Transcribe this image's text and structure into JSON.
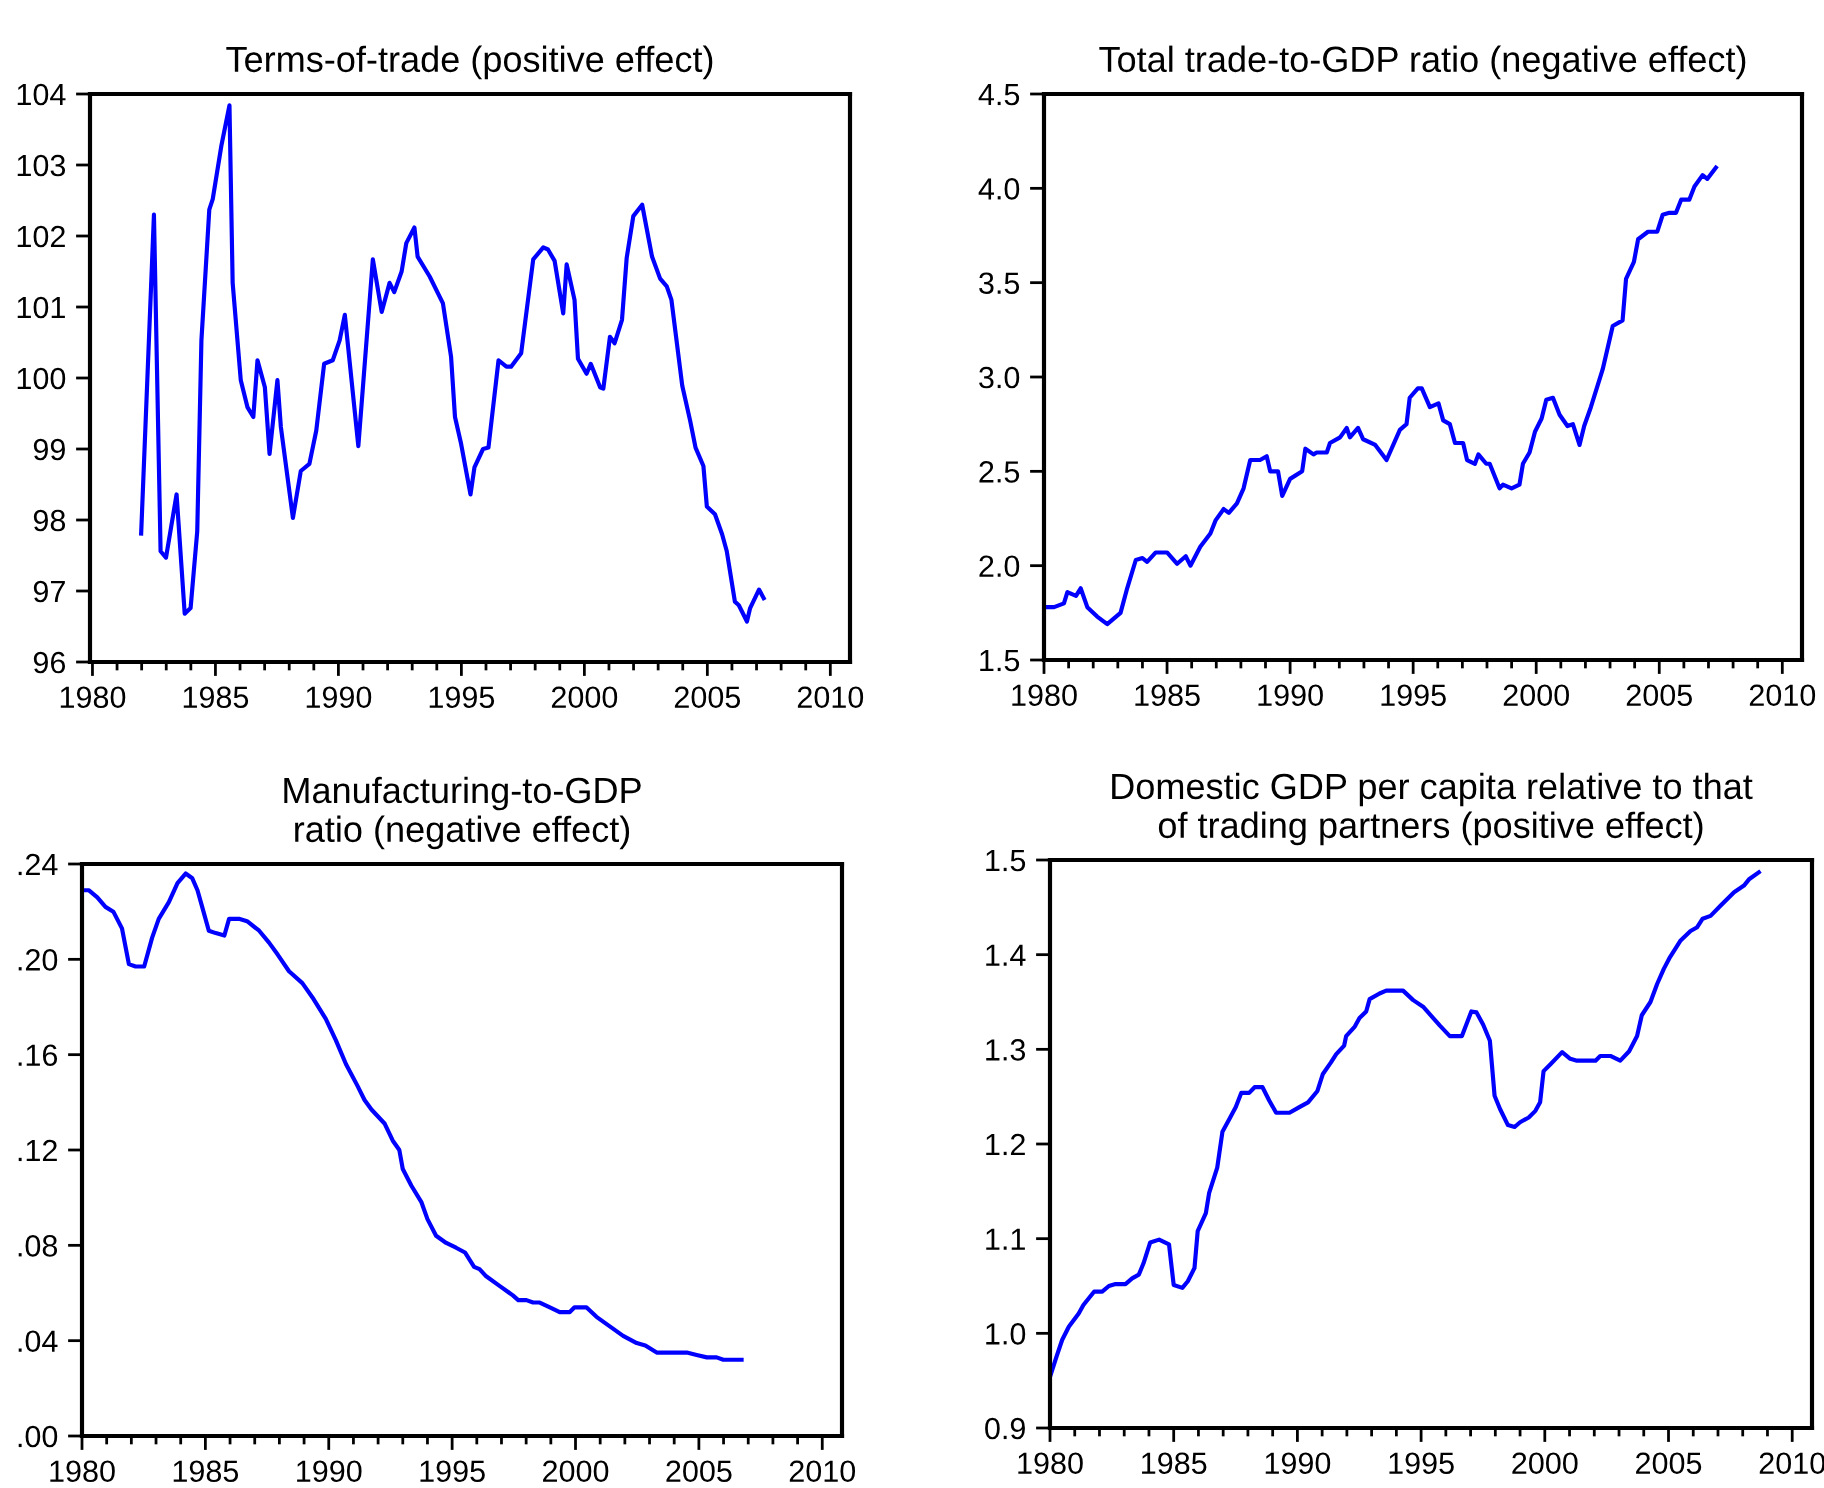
{
  "chart_data": [
    {
      "type": "line",
      "title": "Terms-of-trade (positive effect)",
      "color": "#0000ff",
      "x": [
        1981.98,
        1982.5,
        1982.77,
        1982.99,
        1983.42,
        1983.75,
        1983.99,
        1984.26,
        1984.43,
        1984.75,
        1984.89,
        1985.24,
        1985.57,
        1985.7,
        1986.03,
        1986.3,
        1986.54,
        1986.71,
        1987.01,
        1987.2,
        1987.52,
        1987.66,
        1988.15,
        1988.47,
        1988.82,
        1989.1,
        1989.42,
        1989.77,
        1990.05,
        1990.26,
        1990.81,
        1991.4,
        1991.76,
        1992.08,
        1992.27,
        1992.57,
        1992.76,
        1993.09,
        1993.22,
        1993.71,
        1994.25,
        1994.58,
        1994.74,
        1994.99,
        1995.37,
        1995.53,
        1995.88,
        1996.1,
        1996.51,
        1996.83,
        1997.02,
        1997.43,
        1997.92,
        1998.33,
        1998.52,
        1998.79,
        1999.14,
        1999.28,
        1999.6,
        1999.74,
        2000.09,
        2000.26,
        2000.64,
        2000.77,
        2001.04,
        2001.23,
        2001.53,
        2001.72,
        2001.99,
        2002.35,
        2002.75,
        2003.08,
        2003.35,
        2003.54,
        2003.98,
        2004.3,
        2004.52,
        2004.84,
        2004.98,
        2005.31,
        2005.6,
        2005.79,
        2006.12,
        2006.28,
        2006.61,
        2006.74,
        2007.1,
        2007.29
      ],
      "values": [
        97.81,
        102.3,
        97.56,
        97.47,
        98.36,
        96.68,
        96.76,
        97.84,
        100.53,
        102.37,
        102.52,
        103.27,
        103.84,
        101.34,
        99.97,
        99.59,
        99.45,
        100.25,
        99.87,
        98.93,
        99.97,
        99.31,
        98.03,
        98.69,
        98.79,
        99.26,
        100.2,
        100.25,
        100.53,
        100.89,
        99.04,
        101.67,
        100.93,
        101.34,
        101.21,
        101.5,
        101.9,
        102.12,
        101.71,
        101.43,
        101.05,
        100.3,
        99.45,
        99.07,
        98.36,
        98.74,
        99.0,
        99.02,
        100.25,
        100.16,
        100.16,
        100.35,
        101.67,
        101.84,
        101.81,
        101.65,
        100.91,
        101.6,
        101.1,
        100.27,
        100.06,
        100.2,
        99.87,
        99.85,
        100.58,
        100.49,
        100.82,
        101.69,
        102.28,
        102.44,
        101.71,
        101.4,
        101.29,
        101.1,
        99.89,
        99.4,
        99.02,
        98.76,
        98.19,
        98.08,
        97.8,
        97.56,
        96.85,
        96.8,
        96.57,
        96.76,
        97.02,
        96.9
      ],
      "xlim": [
        1979.9,
        2010.8
      ],
      "ylim": [
        96,
        104
      ],
      "xticks": [
        1980,
        1985,
        1990,
        1995,
        2000,
        2005,
        2010
      ],
      "yticks": [
        96,
        97,
        98,
        99,
        100,
        101,
        102,
        103,
        104
      ]
    },
    {
      "type": "line",
      "title": "Total trade-to-GDP ratio (negative effect)",
      "color": "#0000ff",
      "x": [
        1980.0,
        1980.41,
        1980.81,
        1980.95,
        1981.3,
        1981.49,
        1981.76,
        1982.16,
        1982.57,
        1983.11,
        1983.38,
        1983.73,
        1984.0,
        1984.19,
        1984.54,
        1985.0,
        1985.41,
        1985.76,
        1985.95,
        1986.35,
        1986.76,
        1986.97,
        1987.3,
        1987.51,
        1987.84,
        1988.11,
        1988.38,
        1988.78,
        1989.05,
        1989.19,
        1989.51,
        1989.68,
        1990.0,
        1990.49,
        1990.62,
        1990.95,
        1991.08,
        1991.49,
        1991.62,
        1992.03,
        1992.3,
        1992.43,
        1992.76,
        1992.97,
        1993.46,
        1993.92,
        1994.46,
        1994.73,
        1994.86,
        1995.19,
        1995.35,
        1995.68,
        1996.03,
        1996.22,
        1996.49,
        1996.7,
        1997.03,
        1997.19,
        1997.51,
        1997.65,
        1997.97,
        1998.11,
        1998.51,
        1998.65,
        1999.0,
        1999.32,
        1999.46,
        1999.73,
        1999.95,
        2000.22,
        2000.41,
        2000.68,
        2000.95,
        2001.27,
        2001.49,
        2001.76,
        2001.95,
        2002.22,
        2002.7,
        2003.11,
        2003.51,
        2003.65,
        2003.97,
        2004.14,
        2004.54,
        2004.92,
        2005.14,
        2005.41,
        2005.68,
        2005.89,
        2006.22,
        2006.43,
        2006.76,
        2006.95,
        2007.3
      ],
      "values": [
        1.78,
        1.78,
        1.8,
        1.86,
        1.84,
        1.88,
        1.78,
        1.73,
        1.69,
        1.75,
        1.88,
        2.03,
        2.04,
        2.02,
        2.07,
        2.07,
        2.01,
        2.05,
        2.0,
        2.1,
        2.17,
        2.24,
        2.3,
        2.28,
        2.33,
        2.41,
        2.56,
        2.56,
        2.58,
        2.5,
        2.5,
        2.37,
        2.46,
        2.5,
        2.62,
        2.59,
        2.6,
        2.6,
        2.65,
        2.68,
        2.73,
        2.68,
        2.73,
        2.67,
        2.64,
        2.56,
        2.72,
        2.75,
        2.89,
        2.94,
        2.94,
        2.84,
        2.86,
        2.77,
        2.75,
        2.65,
        2.65,
        2.56,
        2.54,
        2.59,
        2.54,
        2.54,
        2.41,
        2.43,
        2.41,
        2.43,
        2.54,
        2.6,
        2.71,
        2.78,
        2.88,
        2.89,
        2.8,
        2.74,
        2.75,
        2.64,
        2.74,
        2.84,
        3.04,
        3.27,
        3.3,
        3.52,
        3.61,
        3.73,
        3.77,
        3.77,
        3.86,
        3.87,
        3.87,
        3.94,
        3.94,
        4.01,
        4.07,
        4.05,
        4.11
      ],
      "xlim": [
        1980,
        2010.8
      ],
      "ylim": [
        1.5,
        4.5
      ],
      "xticks": [
        1980,
        1985,
        1990,
        1995,
        2000,
        2005,
        2010
      ],
      "yticks": [
        {
          "value": 1.5,
          "label": "1.5"
        },
        {
          "value": 2.0,
          "label": "2.0"
        },
        {
          "value": 2.5,
          "label": "2.5"
        },
        {
          "value": 3.0,
          "label": "3.0"
        },
        {
          "value": 3.5,
          "label": "3.5"
        },
        {
          "value": 4.0,
          "label": "4.0"
        },
        {
          "value": 4.5,
          "label": "4.5"
        }
      ]
    },
    {
      "type": "line",
      "title": "Manufacturing-to-GDP\nratio (negative effect)",
      "color": "#0000ff",
      "x": [
        1980.0,
        1980.27,
        1980.62,
        1980.95,
        1981.27,
        1981.62,
        1981.9,
        1982.17,
        1982.52,
        1982.84,
        1983.11,
        1983.52,
        1983.87,
        1984.2,
        1984.47,
        1984.68,
        1984.87,
        1985.14,
        1985.42,
        1985.77,
        1985.96,
        1986.36,
        1986.69,
        1987.18,
        1987.58,
        1987.93,
        1988.39,
        1988.93,
        1989.34,
        1989.88,
        1990.29,
        1990.7,
        1991.16,
        1991.45,
        1991.73,
        1992.27,
        1992.59,
        1992.86,
        1993.0,
        1993.35,
        1993.76,
        1994.0,
        1994.35,
        1994.76,
        1995.16,
        1995.52,
        1995.89,
        1996.11,
        1996.38,
        1996.92,
        1997.46,
        1997.68,
        1998.01,
        1998.28,
        1998.55,
        1998.96,
        1999.36,
        1999.77,
        1999.96,
        2000.44,
        2000.85,
        2001.39,
        2001.93,
        2002.48,
        2002.83,
        2003.29,
        2003.69,
        2004.24,
        2004.51,
        2004.91,
        2005.32,
        2005.72,
        2005.99,
        2006.4,
        2006.73
      ],
      "values": [
        0.229,
        0.229,
        0.226,
        0.222,
        0.22,
        0.213,
        0.198,
        0.197,
        0.197,
        0.209,
        0.217,
        0.224,
        0.232,
        0.236,
        0.234,
        0.229,
        0.222,
        0.212,
        0.211,
        0.21,
        0.217,
        0.217,
        0.216,
        0.212,
        0.207,
        0.202,
        0.195,
        0.19,
        0.184,
        0.175,
        0.166,
        0.156,
        0.147,
        0.141,
        0.137,
        0.131,
        0.124,
        0.12,
        0.112,
        0.105,
        0.098,
        0.091,
        0.084,
        0.081,
        0.079,
        0.077,
        0.071,
        0.07,
        0.067,
        0.063,
        0.059,
        0.057,
        0.057,
        0.056,
        0.056,
        0.054,
        0.052,
        0.052,
        0.054,
        0.054,
        0.05,
        0.046,
        0.042,
        0.039,
        0.038,
        0.035,
        0.035,
        0.035,
        0.035,
        0.034,
        0.033,
        0.033,
        0.032,
        0.032,
        0.032
      ],
      "xlim": [
        1980,
        2010.8
      ],
      "ylim": [
        0,
        0.24
      ],
      "xticks": [
        1980,
        1985,
        1990,
        1995,
        2000,
        2005,
        2010
      ],
      "yticks": [
        {
          "value": 0,
          "label": ".00"
        },
        {
          "value": 0.04,
          "label": ".04"
        },
        {
          "value": 0.08,
          "label": ".08"
        },
        {
          "value": 0.12,
          "label": ".12"
        },
        {
          "value": 0.16,
          "label": ".16"
        },
        {
          "value": 0.2,
          "label": ".20"
        },
        {
          "value": 0.24,
          "label": ".24"
        }
      ]
    },
    {
      "type": "line",
      "title": "Domestic GDP per capita relative to that\nof trading partners (positive effect)",
      "color": "#0000ff",
      "x": [
        1980.0,
        1980.27,
        1980.49,
        1980.76,
        1981.16,
        1981.35,
        1981.78,
        1982.11,
        1982.38,
        1982.65,
        1983.05,
        1983.32,
        1983.59,
        1983.78,
        1984.05,
        1984.41,
        1984.81,
        1985.0,
        1985.35,
        1985.57,
        1985.84,
        1985.97,
        1986.3,
        1986.43,
        1986.76,
        1986.97,
        1987.24,
        1987.51,
        1987.73,
        1988.05,
        1988.27,
        1988.59,
        1988.86,
        1989.14,
        1989.68,
        1990.08,
        1990.43,
        1990.81,
        1991.03,
        1991.35,
        1991.57,
        1991.89,
        1991.97,
        1992.32,
        1992.51,
        1992.78,
        1992.92,
        1993.32,
        1993.59,
        1994.27,
        1994.68,
        1995.08,
        1995.49,
        1995.76,
        1996.16,
        1996.65,
        1997.03,
        1997.24,
        1997.51,
        1997.78,
        1997.97,
        1998.19,
        1998.51,
        1998.78,
        1999.0,
        1999.35,
        1999.62,
        1999.81,
        1999.95,
        2000.22,
        2000.7,
        2001.03,
        2001.3,
        2002.05,
        2002.24,
        2002.65,
        2003.05,
        2003.41,
        2003.73,
        2003.92,
        2004.27,
        2004.54,
        2004.81,
        2005.03,
        2005.49,
        2005.89,
        2006.16,
        2006.38,
        2006.7,
        2007.11,
        2007.65,
        2008.05,
        2008.27,
        2008.65
      ],
      "values": [
        0.954,
        0.976,
        0.993,
        1.007,
        1.021,
        1.03,
        1.044,
        1.044,
        1.05,
        1.052,
        1.052,
        1.058,
        1.062,
        1.074,
        1.096,
        1.099,
        1.094,
        1.051,
        1.048,
        1.055,
        1.069,
        1.108,
        1.127,
        1.148,
        1.175,
        1.213,
        1.226,
        1.239,
        1.254,
        1.254,
        1.26,
        1.26,
        1.246,
        1.233,
        1.233,
        1.239,
        1.244,
        1.256,
        1.274,
        1.286,
        1.295,
        1.304,
        1.314,
        1.324,
        1.333,
        1.34,
        1.353,
        1.359,
        1.362,
        1.362,
        1.352,
        1.345,
        1.333,
        1.325,
        1.314,
        1.314,
        1.34,
        1.339,
        1.326,
        1.309,
        1.251,
        1.237,
        1.22,
        1.218,
        1.223,
        1.228,
        1.235,
        1.244,
        1.277,
        1.284,
        1.297,
        1.29,
        1.288,
        1.288,
        1.293,
        1.293,
        1.288,
        1.298,
        1.314,
        1.336,
        1.35,
        1.369,
        1.385,
        1.396,
        1.415,
        1.425,
        1.429,
        1.438,
        1.441,
        1.452,
        1.466,
        1.473,
        1.48,
        1.487
      ],
      "xlim": [
        1980,
        2010.8
      ],
      "ylim": [
        0.9,
        1.5
      ],
      "xticks": [
        1980,
        1985,
        1990,
        1995,
        2000,
        2005,
        2010
      ],
      "yticks": [
        {
          "value": 0.9,
          "label": "0.9"
        },
        {
          "value": 1.0,
          "label": "1.0"
        },
        {
          "value": 1.1,
          "label": "1.1"
        },
        {
          "value": 1.2,
          "label": "1.2"
        },
        {
          "value": 1.3,
          "label": "1.3"
        },
        {
          "value": 1.4,
          "label": "1.4"
        },
        {
          "value": 1.5,
          "label": "1.5"
        }
      ]
    }
  ]
}
